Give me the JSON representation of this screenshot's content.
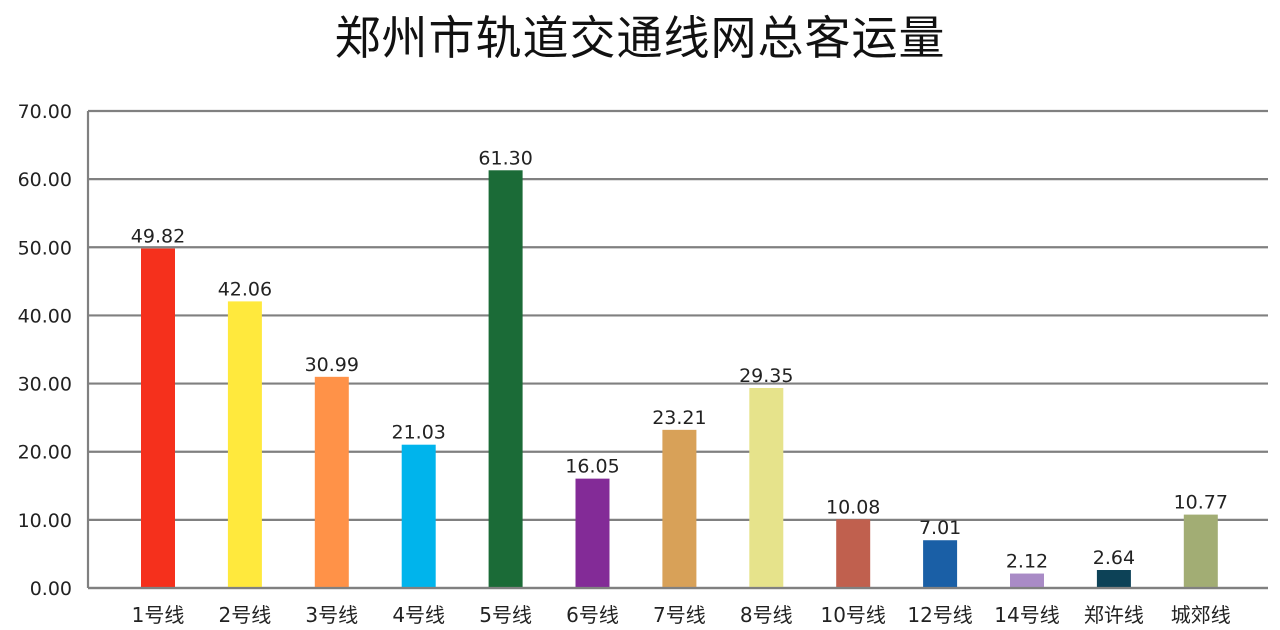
{
  "chart_data": {
    "type": "bar",
    "title": "郑州市轨道交通线网总客运量",
    "xlabel": "",
    "ylabel": "",
    "ylim": [
      0,
      70
    ],
    "yticks": [
      "0.00",
      "10.00",
      "20.00",
      "30.00",
      "40.00",
      "50.00",
      "60.00",
      "70.00"
    ],
    "grid": true,
    "categories": [
      "1号线",
      "2号线",
      "3号线",
      "4号线",
      "5号线",
      "6号线",
      "7号线",
      "8号线",
      "10号线",
      "12号线",
      "14号线",
      "郑许线",
      "城郊线"
    ],
    "values": [
      49.82,
      42.06,
      30.99,
      21.03,
      61.3,
      16.05,
      23.21,
      29.35,
      10.08,
      7.01,
      2.12,
      2.64,
      10.77
    ],
    "value_labels": [
      "49.82",
      "42.06",
      "30.99",
      "21.03",
      "61.30",
      "16.05",
      "23.21",
      "29.35",
      "10.08",
      "7.01",
      "2.12",
      "2.64",
      "10.77"
    ],
    "colors": [
      "#f5301c",
      "#ffe93d",
      "#ff9248",
      "#00b4ec",
      "#1b6b37",
      "#832b97",
      "#d8a158",
      "#e6e38b",
      "#c0604e",
      "#1a5fa6",
      "#a98bc6",
      "#0d4257",
      "#a2ad74"
    ]
  }
}
